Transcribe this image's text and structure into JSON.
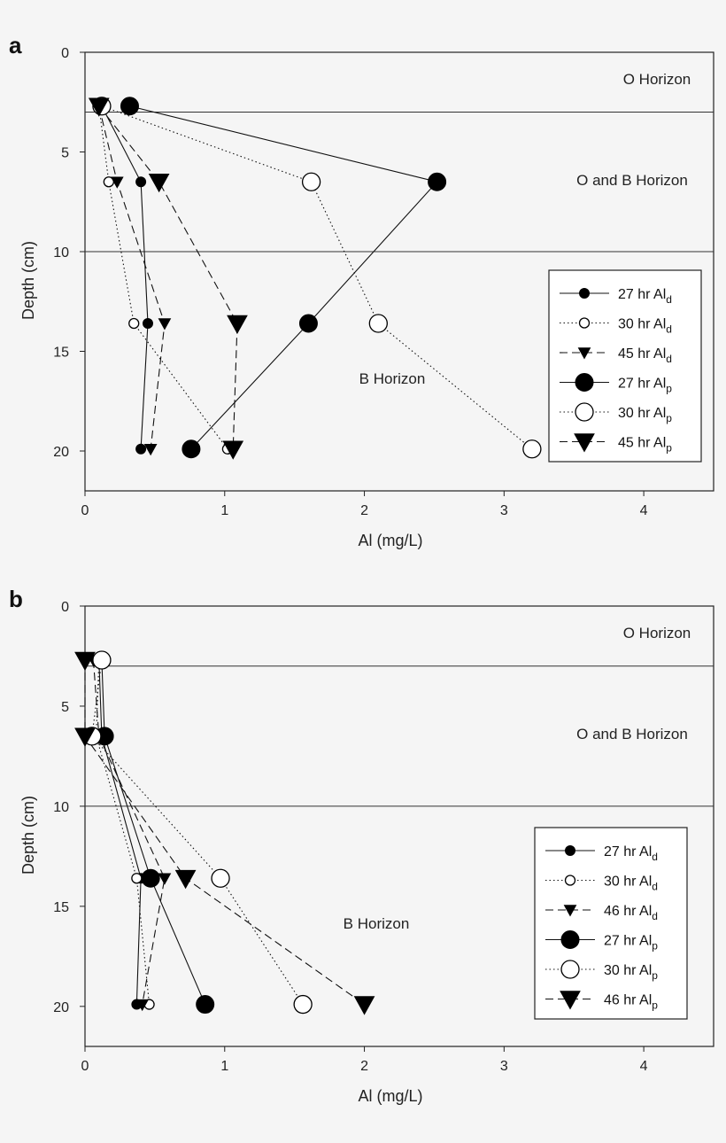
{
  "chart_data": [
    {
      "panel": "a",
      "type": "line",
      "xlabel": "Al (mg/L)",
      "ylabel": "Depth (cm)",
      "xlim": [
        0,
        4.5
      ],
      "ylim": [
        0,
        22
      ],
      "y_inverted": true,
      "x_ticks": [
        "0",
        "1",
        "2",
        "3",
        "4"
      ],
      "y_ticks": [
        "0",
        "5",
        "10",
        "15",
        "20"
      ],
      "reference_lines": [
        3,
        10
      ],
      "annotations": [
        {
          "text": "O Horizon",
          "x": 3.9,
          "y": 1.3
        },
        {
          "text": "O and B Horizon",
          "x": 3.9,
          "y": 6.3
        },
        {
          "text": "B Horizon",
          "x": 2.1,
          "y": 16.8
        }
      ],
      "legend_position": "right",
      "series": [
        {
          "name": "27 hr Al",
          "sub": "d",
          "marker": "circle-filled-small",
          "line": "solid",
          "x": [
            0.12,
            0.4,
            0.45,
            0.4
          ],
          "y": [
            2.7,
            6.5,
            13.6,
            19.9
          ]
        },
        {
          "name": "30 hr Al",
          "sub": "d",
          "marker": "circle-open-small",
          "line": "dotted",
          "x": [
            0.1,
            0.17,
            0.35,
            1.02
          ],
          "y": [
            2.7,
            6.5,
            13.6,
            19.9
          ]
        },
        {
          "name": "45 hr Al",
          "sub": "d",
          "marker": "triangle-small",
          "line": "dashed",
          "x": [
            0.1,
            0.23,
            0.57,
            0.47
          ],
          "y": [
            2.7,
            6.5,
            13.6,
            19.9
          ]
        },
        {
          "name": "27 hr Al",
          "sub": "p",
          "marker": "circle-filled-large",
          "line": "solid",
          "x": [
            0.32,
            2.52,
            1.6,
            0.76
          ],
          "y": [
            2.7,
            6.5,
            13.6,
            19.9
          ]
        },
        {
          "name": "30 hr Al",
          "sub": "p",
          "marker": "circle-open-large",
          "line": "dotted",
          "x": [
            0.12,
            1.62,
            2.1,
            3.2
          ],
          "y": [
            2.7,
            6.5,
            13.6,
            19.9
          ]
        },
        {
          "name": "45 hr Al",
          "sub": "p",
          "marker": "triangle-large",
          "line": "dashed",
          "x": [
            0.1,
            0.53,
            1.09,
            1.06
          ],
          "y": [
            2.7,
            6.5,
            13.6,
            19.9
          ]
        }
      ]
    },
    {
      "panel": "b",
      "type": "line",
      "xlabel": "Al (mg/L)",
      "ylabel": "Depth (cm)",
      "xlim": [
        0,
        4.5
      ],
      "ylim": [
        0,
        22
      ],
      "y_inverted": true,
      "x_ticks": [
        "0",
        "1",
        "2",
        "3",
        "4"
      ],
      "y_ticks": [
        "0",
        "5",
        "10",
        "15",
        "20"
      ],
      "reference_lines": [
        3,
        10
      ],
      "annotations": [
        {
          "text": "O Horizon",
          "x": 3.9,
          "y": 1.3
        },
        {
          "text": "O and B Horizon",
          "x": 3.9,
          "y": 6.3
        },
        {
          "text": "B Horizon",
          "x": 2.0,
          "y": 16.8
        }
      ],
      "legend_position": "right",
      "series": [
        {
          "name": "27 hr Al",
          "sub": "d",
          "marker": "circle-filled-small",
          "line": "solid",
          "x": [
            0.1,
            0.12,
            0.4,
            0.37
          ],
          "y": [
            2.7,
            6.5,
            13.6,
            19.9
          ]
        },
        {
          "name": "30 hr Al",
          "sub": "d",
          "marker": "circle-open-small",
          "line": "dotted",
          "x": [
            0.1,
            0.08,
            0.37,
            0.46
          ],
          "y": [
            2.7,
            6.5,
            13.6,
            19.9
          ]
        },
        {
          "name": "46 hr Al",
          "sub": "d",
          "marker": "triangle-small",
          "line": "dashed",
          "x": [
            0.06,
            0.1,
            0.57,
            0.41
          ],
          "y": [
            2.7,
            6.5,
            13.6,
            19.9
          ]
        },
        {
          "name": "27 hr Al",
          "sub": "p",
          "marker": "circle-filled-large",
          "line": "solid",
          "x": [
            0.12,
            0.14,
            0.47,
            0.86
          ],
          "y": [
            2.7,
            6.5,
            13.6,
            19.9
          ]
        },
        {
          "name": "30 hr Al",
          "sub": "p",
          "marker": "circle-open-large",
          "line": "dotted",
          "x": [
            0.12,
            0.05,
            0.97,
            1.56
          ],
          "y": [
            2.7,
            6.5,
            13.6,
            19.9
          ]
        },
        {
          "name": "46 hr Al",
          "sub": "p",
          "marker": "triangle-large",
          "line": "dashed",
          "x": [
            0.0,
            0.0,
            0.72,
            2.0
          ],
          "y": [
            2.7,
            6.5,
            13.6,
            19.9
          ]
        }
      ]
    }
  ]
}
